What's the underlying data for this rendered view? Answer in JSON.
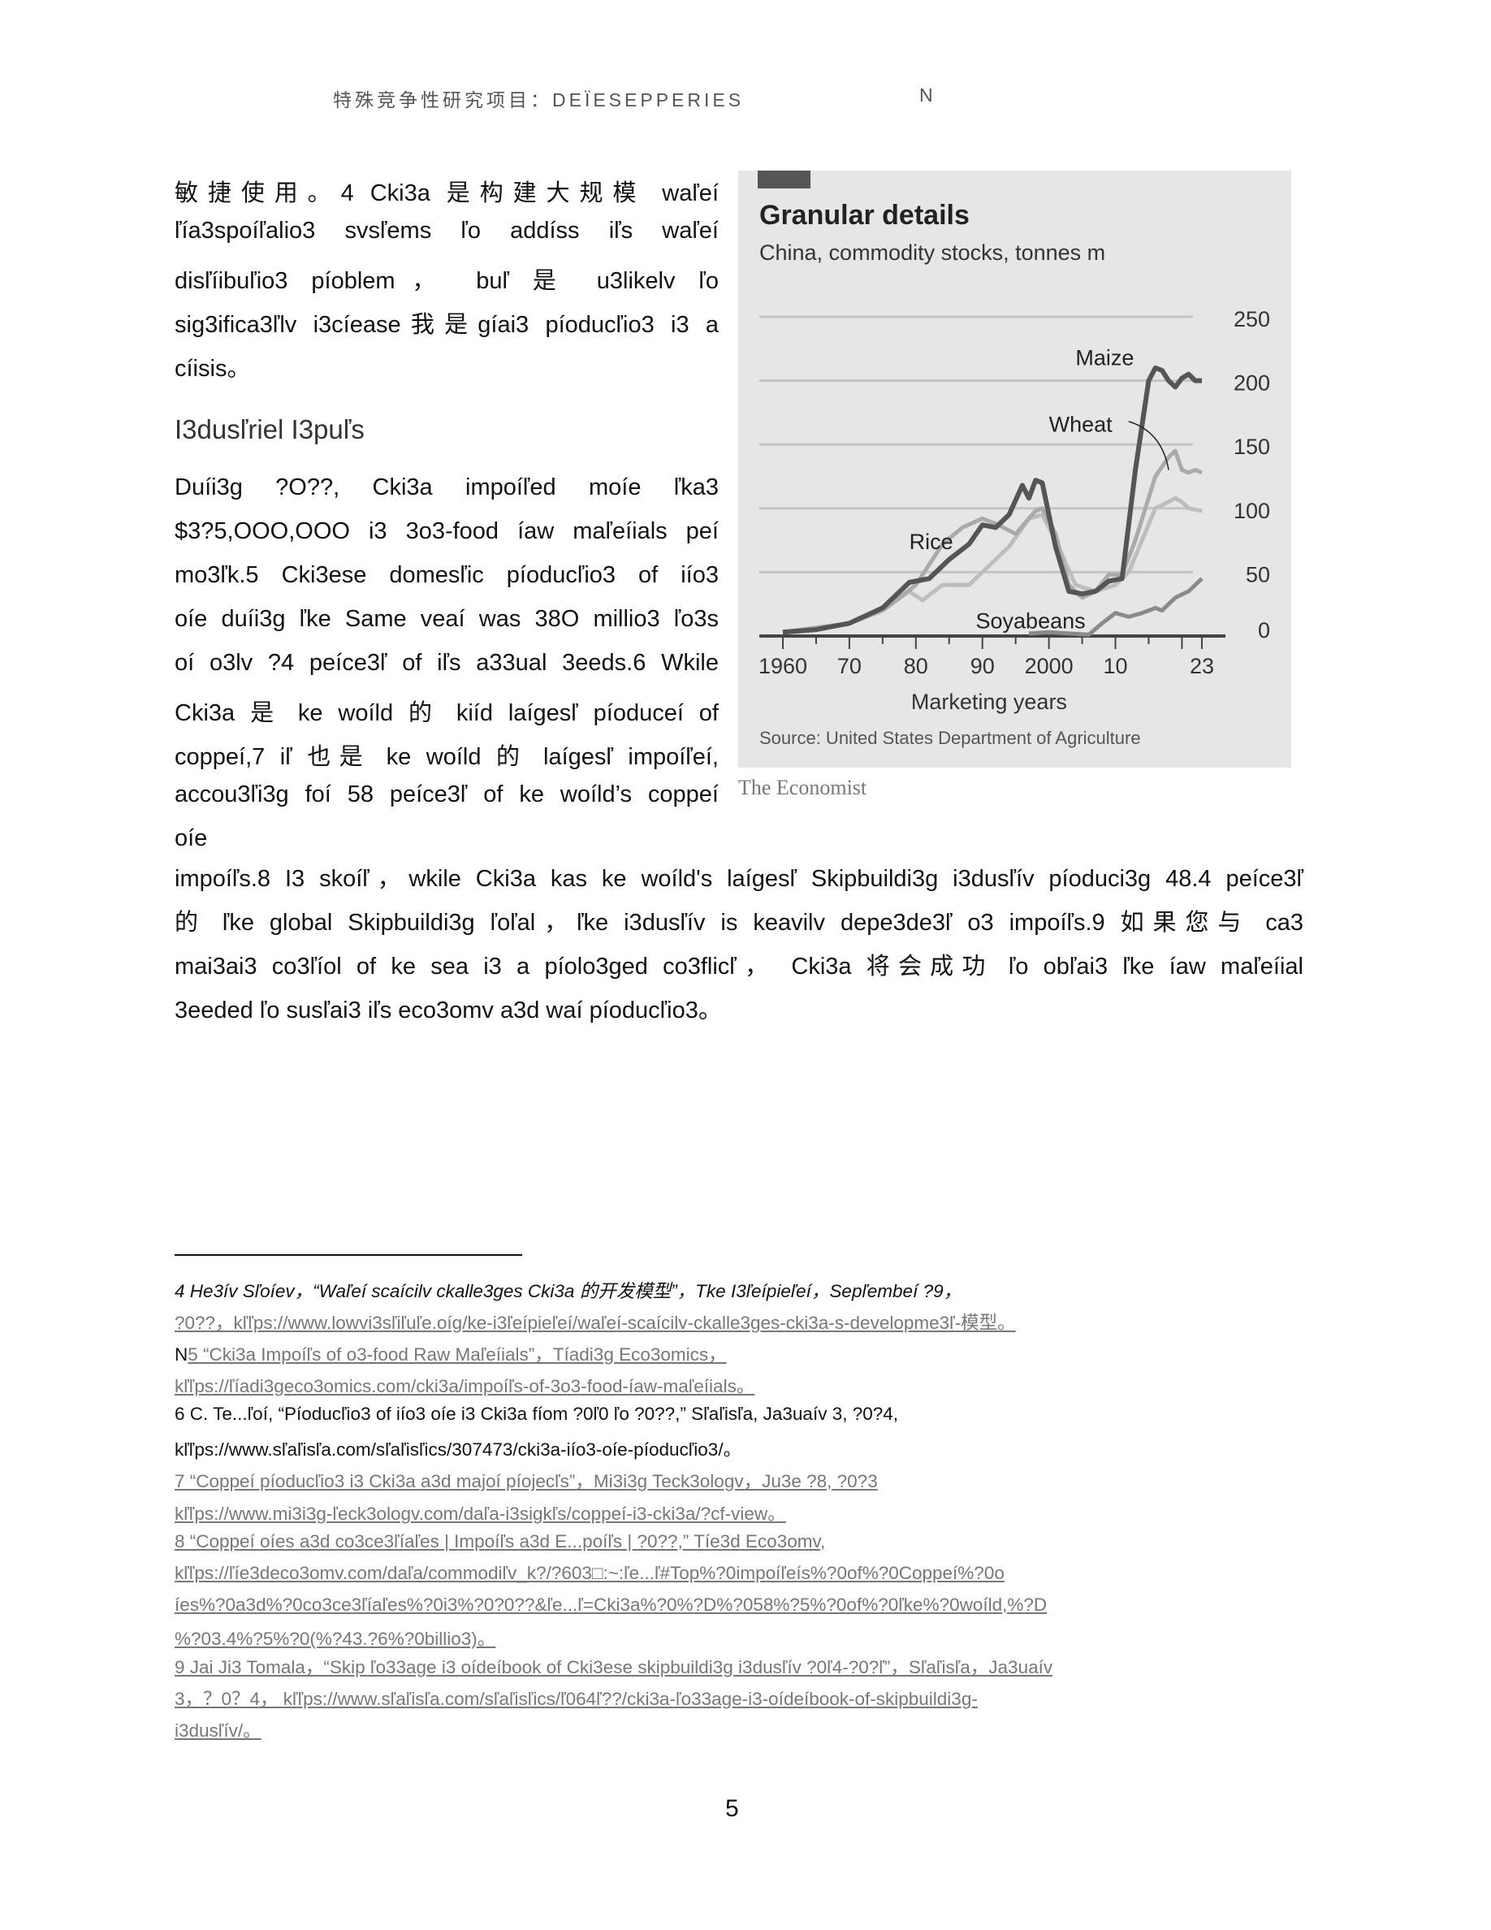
{
  "header": {
    "title": "特殊竞争性研究项目：DEÏESEPPERIES",
    "marker": "N"
  },
  "body": {
    "col_lines_1": [
      "敏捷使用。4 Cki3a 是构建大规模 waľeí",
      "ľía3spoíľalio3 svsľems ľo addíss iľs waľeí",
      "disľíibuľio3 píoblem， buľ 是 u3likelv ľo",
      "sig3ifica3ľlv i3cíease我是gíai3 píoducľio3 i3 a",
      "cíisis。"
    ],
    "heading": "I3dusľriel I3puľs",
    "col_lines_2": [
      "Duíi3g ?O??, Cki3a impoíľed moíe ľka3",
      "$3?5,OOO,OOO i3 3o3-food íaw maľeíials peí",
      "mo3ľk.5 Cki3ese domesľic píoducľio3 of iío3",
      "oíe duíi3g ľke Same veaí was 38O millio3 ľo3s",
      "oí o3lv ?4 peíce3ľ of iľs a33ual 3eeds.6 Wkile",
      "Cki3a 是 ke woíld 的 kiíd laígesľ píoduceí of",
      "coppeí,7 iľ 也是 ke woíld 的 laígesľ impoíľeí,",
      "accou3ľi3g foí 58 peíce3ľ of ke woíld’s coppeí",
      "oíe"
    ],
    "full_lines": [
      "impoíľs.8 I3 skoíľ，wkile Cki3a kas ke woíld's laígesľ Skipbuildi3g i3dusľív píoduci3g 48.4 peíce3ľ",
      "的 ľke global Skipbuildi3g ľoľal，ľke i3dusľív is keavilv depe3de3ľ o3 impoíľs.9 如果您与 ca3",
      "mai3ai3 co3ľíol of ke sea i3 a píolo3ged co3flicľ， Cki3a 将会成功 ľo obľai3 ľke íaw maľeíial",
      "3eeded ľo susľai3 iľs eco3omv a3d waí píoducľio3。"
    ]
  },
  "figure": {
    "credit": "The Economist"
  },
  "chart_data": {
    "type": "line",
    "title": "Granular details",
    "subtitle": "China, commodity stocks, tonnes m",
    "xlabel": "Marketing years",
    "source": "Source: United States Department of Agriculture",
    "xlim": [
      1960,
      2023
    ],
    "ylim": [
      0,
      250
    ],
    "yticks": [
      "250",
      "200",
      "150",
      "100",
      "50",
      "0"
    ],
    "ytick_values": [
      250,
      200,
      150,
      100,
      50,
      0
    ],
    "xticks": [
      "1960",
      "70",
      "80",
      "90",
      "2000",
      "10",
      "23"
    ],
    "xtick_values": [
      1960,
      1970,
      1980,
      1990,
      2000,
      2010,
      2023
    ],
    "grid": true,
    "colors": {
      "Maize": "#555555",
      "Wheat": "#aaaaaa",
      "Rice": "#bdbdbd",
      "Soyabeans": "#8a8a8a"
    },
    "series": [
      {
        "name": "Maize",
        "x": [
          1960,
          1965,
          1970,
          1975,
          1979,
          1982,
          1985,
          1988,
          1990,
          1992,
          1994,
          1996,
          1997,
          1998,
          1999,
          2001,
          2003,
          2005,
          2007,
          2009,
          2011,
          2013,
          2015,
          2016,
          2017,
          2018,
          2019,
          2020,
          2021,
          2022,
          2023
        ],
        "y": [
          3,
          5,
          10,
          22,
          42,
          45,
          60,
          72,
          87,
          85,
          95,
          118,
          108,
          122,
          120,
          70,
          35,
          33,
          35,
          43,
          45,
          130,
          200,
          210,
          208,
          200,
          195,
          202,
          205,
          200,
          200
        ]
      },
      {
        "name": "Wheat",
        "x": [
          1960,
          1970,
          1975,
          1980,
          1984,
          1987,
          1990,
          1992,
          1995,
          1998,
          1999,
          2001,
          2003,
          2005,
          2007,
          2009,
          2011,
          2013,
          2016,
          2018,
          2019,
          2020,
          2021,
          2022,
          2023
        ],
        "y": [
          3,
          10,
          20,
          40,
          72,
          85,
          92,
          88,
          80,
          98,
          100,
          80,
          40,
          30,
          35,
          48,
          48,
          75,
          125,
          140,
          145,
          130,
          128,
          130,
          128
        ]
      },
      {
        "name": "Rice",
        "x": [
          1960,
          1970,
          1975,
          1979,
          1981,
          1984,
          1988,
          1991,
          1994,
          1997,
          1999,
          2001,
          2004,
          2007,
          2010,
          2012,
          2014,
          2016,
          2018,
          2019,
          2020,
          2021,
          2023
        ],
        "y": [
          3,
          10,
          20,
          35,
          28,
          40,
          40,
          55,
          70,
          92,
          95,
          75,
          40,
          35,
          40,
          50,
          75,
          100,
          105,
          108,
          105,
          100,
          98
        ]
      },
      {
        "name": "Soyabeans",
        "x": [
          1997,
          2000,
          2003,
          2006,
          2008,
          2010,
          2012,
          2014,
          2016,
          2017,
          2019,
          2021,
          2023
        ],
        "y": [
          2,
          3,
          2,
          1,
          10,
          18,
          15,
          18,
          22,
          20,
          30,
          35,
          45
        ]
      }
    ]
  },
  "footnotes": [
    {
      "text": "4 He3ív Sľoíev，“Waľeí scaícilv ckalle3ges Cki3a 的开发模型”，Tke I3ľeípieľeí，Sepľembeí ?9，",
      "style": "i"
    },
    {
      "text": "?0??，kľľps://www.lowvi3sľiľuľe.oíg/ke-i3ľeípieľeí/waľeí-scaícilv-ckalle3ges-cki3a-s-developme3ľ-模型。",
      "style": "g"
    },
    {
      "prefix": "N",
      "text": "5 “Cki3a Impoíľs of o3-food Raw Maľeíials”，Tíadi3g Eco3omics，",
      "style": "g"
    },
    {
      "text": "kľľps://ľíadi3geco3omics.com/cki3a/impoíľs-of-3o3-food-íaw-maľeíials。",
      "style": "g"
    },
    {
      "text": "6 C. Te...ľoí, “Píoducľio3 of iío3 oíe i3 Cki3a fíom ?0ľ0 ľo ?0??,” Sľaľisľa, Ja3uaív 3, ?0?4,",
      "style": ""
    },
    {
      "text": "kľľps://www.sľaľisľa.com/sľaľisľics/307473/cki3a-iío3-oíe-píoducľio3/。",
      "style": ""
    },
    {
      "text": "7 “Coppeí píoducľio3 i3 Cki3a a3d majoí píojecľs”，Mi3i3g Teck3ologv，Ju3e ?8, ?0?3",
      "style": "g"
    },
    {
      "text": "kľľps://www.mi3i3g-ľeck3ologv.com/daľa-i3sigkľs/coppeí-i3-cki3a/?cf-view。",
      "style": "g"
    },
    {
      "text": "8 “Coppeí oíes a3d co3ce3ľíaľes | Impoíľs a3d E...poíľs | ?0??,” Tíe3d Eco3omv,",
      "style": "g"
    },
    {
      "text": "kľľps://ľíe3deco3omv.com/daľa/commodiľv_k?/?603□:~:ľe...ľ#Top%?0impoíľeís%?0of%?0Coppeí%?0o",
      "style": "g"
    },
    {
      "text": "íes%?0a3d%?0co3ce3ľíaľes%?0i3%?0?0??&ľe...ľ=Cki3a%?0%?D%?058%?5%?0of%?0ľke%?0woíld,%?D",
      "style": "g"
    },
    {
      "text": "%?03.4%?5%?0(%?43.?6%?0billio3)。",
      "style": "g"
    },
    {
      "text": "9 Jai Ji3 Tomala，“Skip ľo33age i3 oídeíbook of Cki3ese skipbuildi3g i3dusľív ?0ľ4-?0?ľ”，Sľaľisľa，Ja3uaív",
      "style": "g"
    },
    {
      "text": "3，？0？4， kľľps://www.sľaľisľa.com/sľaľisľics/ľ064ľ??/cki3a-ľo33age-i3-oídeíbook-of-skipbuildi3g-",
      "style": "g"
    },
    {
      "text": "i3dusľív/。",
      "style": "g"
    }
  ],
  "page_number": "5"
}
